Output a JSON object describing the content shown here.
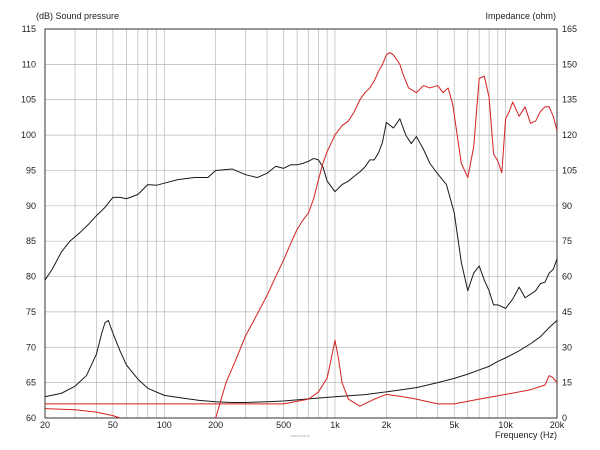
{
  "chart_data": {
    "type": "line",
    "ylabel_left": "(dB)  Sound pressure",
    "ylabel_right": "Impedance  (ohm)",
    "xlabel": "Frequency  (Hz)",
    "x_scale": "log",
    "xlim": [
      20,
      20000
    ],
    "ylim_left": [
      60,
      115
    ],
    "ylim_right": [
      0,
      165
    ],
    "grid": true,
    "x_ticks": [
      20,
      50,
      100,
      200,
      500,
      1000,
      2000,
      5000,
      10000,
      20000
    ],
    "x_tick_labels": [
      "20",
      "50",
      "100",
      "200",
      "500",
      "1k",
      "2k",
      "5k",
      "10k",
      "20k"
    ],
    "y_ticks_left": [
      60,
      65,
      70,
      75,
      80,
      85,
      90,
      95,
      100,
      105,
      110,
      115
    ],
    "y_ticks_right": [
      0,
      15,
      30,
      45,
      60,
      75,
      90,
      105,
      120,
      135,
      150,
      165
    ],
    "watermark": "www.lzd.pl",
    "series": [
      {
        "id": "spl-main",
        "color": "#1a1a1a",
        "axis": "left",
        "x": [
          20,
          22,
          25,
          28,
          32,
          36,
          40,
          45,
          50,
          55,
          60,
          70,
          80,
          90,
          100,
          120,
          150,
          180,
          200,
          250,
          300,
          350,
          400,
          450,
          500,
          550,
          600,
          650,
          700,
          750,
          800,
          850,
          900,
          1000,
          1100,
          1200,
          1300,
          1400,
          1500,
          1600,
          1700,
          1800,
          1900,
          2000,
          2200,
          2400,
          2600,
          2800,
          3000,
          3300,
          3600,
          4000,
          4500,
          5000,
          5500,
          6000,
          6500,
          7000,
          7500,
          8000,
          8500,
          9000,
          10000,
          11000,
          12000,
          13000,
          14000,
          15000,
          16000,
          17000,
          18000,
          19000,
          20000
        ],
        "y": [
          79.5,
          81,
          83.5,
          85,
          86.2,
          87.4,
          88.6,
          89.8,
          91.2,
          91.2,
          91,
          91.6,
          93,
          92.9,
          93.2,
          93.7,
          94,
          94,
          95,
          95.2,
          94.4,
          94,
          94.6,
          95.6,
          95.3,
          95.8,
          95.8,
          96,
          96.3,
          96.7,
          96.5,
          95.5,
          93.5,
          92,
          93,
          93.5,
          94.2,
          94.8,
          95.5,
          96.5,
          96.5,
          97.5,
          99,
          101.8,
          101,
          102.3,
          100,
          98.8,
          99.8,
          98,
          96,
          94.5,
          93,
          89,
          82,
          78,
          80.5,
          81.5,
          79.5,
          78,
          76,
          76,
          75.5,
          76.8,
          78.5,
          77,
          77.5,
          78,
          79,
          79.2,
          80.5,
          81,
          82.5
        ]
      },
      {
        "id": "spl-low",
        "color": "#1a1a1a",
        "axis": "left",
        "x": [
          20,
          25,
          30,
          35,
          40,
          43,
          45,
          47,
          50,
          55,
          60,
          70,
          80,
          100,
          130,
          160,
          200,
          250,
          300,
          400,
          500,
          700,
          1000,
          1500,
          2000,
          3000,
          4000,
          5000,
          6000,
          7000,
          8000,
          9000,
          10000,
          12000,
          14000,
          16000,
          18000,
          20000
        ],
        "y": [
          63,
          63.5,
          64.5,
          66,
          69,
          72,
          73.5,
          73.8,
          72,
          69.5,
          67.5,
          65.5,
          64.2,
          63.2,
          62.8,
          62.5,
          62.3,
          62.2,
          62.2,
          62.3,
          62.4,
          62.7,
          63,
          63.3,
          63.7,
          64.3,
          65,
          65.6,
          66.2,
          66.8,
          67.3,
          68,
          68.5,
          69.5,
          70.5,
          71.5,
          72.8,
          73.8
        ]
      },
      {
        "id": "impedance-main",
        "color": "#d42020",
        "axis": "right",
        "x": [
          200,
          230,
          260,
          300,
          350,
          400,
          450,
          500,
          550,
          600,
          650,
          700,
          750,
          800,
          850,
          900,
          1000,
          1100,
          1200,
          1300,
          1400,
          1500,
          1600,
          1700,
          1800,
          1900,
          2000,
          2100,
          2200,
          2300,
          2400,
          2500,
          2700,
          3000,
          3300,
          3600,
          4000,
          4300,
          4600,
          4900,
          5200,
          5500,
          6000,
          6500,
          7000,
          7500,
          8000,
          8500,
          9000,
          9500,
          10000,
          10500,
          11000,
          12000,
          13000,
          14000,
          15000,
          16000,
          17000,
          18000,
          19000,
          20000
        ],
        "y": [
          0,
          15,
          24,
          35,
          44,
          52,
          60,
          67,
          74,
          80,
          84,
          87,
          93,
          101,
          108,
          113,
          120,
          124,
          126,
          130,
          135,
          138,
          140,
          143,
          147,
          150,
          154,
          155,
          154,
          152,
          150,
          146,
          140,
          138,
          141,
          140,
          141,
          138,
          140,
          133,
          120,
          108,
          102,
          115,
          144,
          145,
          136,
          112,
          109,
          104,
          127,
          130,
          134,
          128,
          132,
          125,
          126,
          130,
          132,
          132,
          128,
          122
        ]
      },
      {
        "id": "impedance-low",
        "color": "#d42020",
        "axis": "right",
        "x": [
          20,
          30,
          40,
          50,
          70,
          100,
          150,
          200,
          300,
          500,
          700,
          800,
          900,
          950,
          1000,
          1050,
          1100,
          1200,
          1400,
          1700,
          2000,
          2500,
          3000,
          4000,
          5000,
          7000,
          10000,
          14000,
          17000,
          18000,
          19000,
          20000
        ],
        "y": [
          6,
          6,
          6,
          6,
          6,
          6,
          6,
          6,
          6,
          6,
          8,
          11,
          17,
          25,
          33,
          25,
          15,
          8,
          5,
          8,
          10,
          9,
          8,
          6,
          6,
          8,
          10,
          12,
          14,
          18,
          17,
          15
        ]
      },
      {
        "id": "impedance-stub",
        "color": "#d42020",
        "axis": "right",
        "x": [
          20,
          30,
          40,
          50,
          55
        ],
        "y": [
          4,
          3.5,
          2.5,
          1,
          0
        ]
      }
    ]
  }
}
